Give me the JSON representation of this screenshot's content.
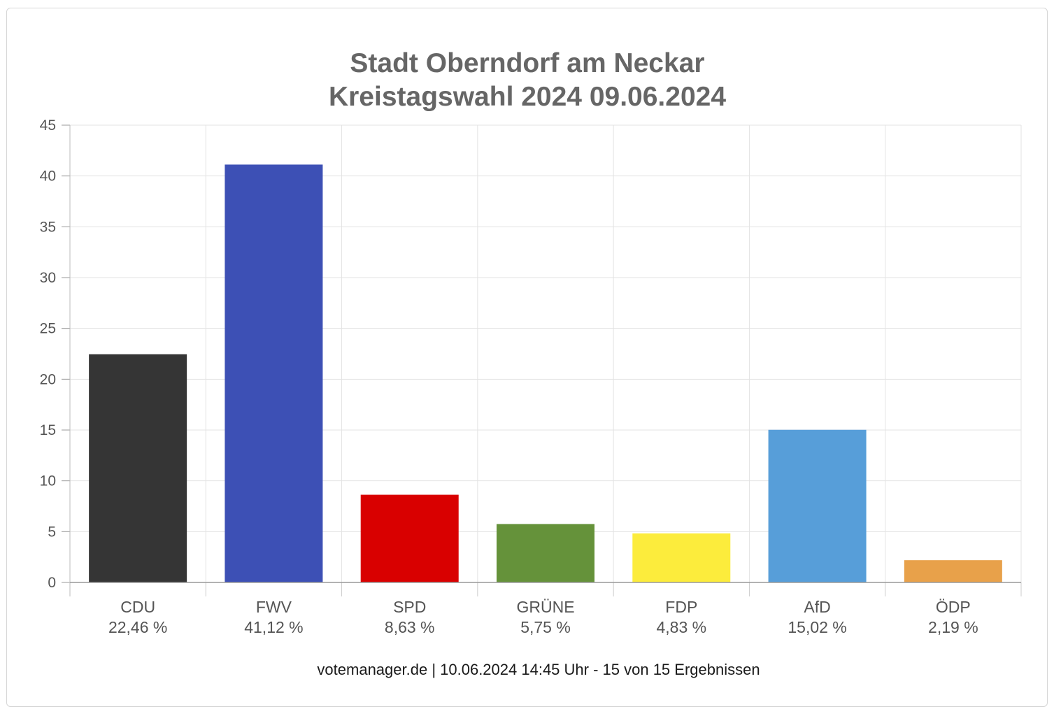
{
  "chart_data": {
    "type": "bar",
    "title_lines": [
      "Stadt Oberndorf am Neckar",
      "Kreistagswahl 2024 09.06.2024"
    ],
    "categories": [
      "CDU",
      "FWV",
      "SPD",
      "GRÜNE",
      "FDP",
      "AfD",
      "ÖDP"
    ],
    "values": [
      22.46,
      41.12,
      8.63,
      5.75,
      4.83,
      15.02,
      2.19
    ],
    "value_labels": [
      "22,46 %",
      "41,12 %",
      "8,63 %",
      "5,75 %",
      "4,83 %",
      "15,02 %",
      "2,19 %"
    ],
    "colors": [
      "#353535",
      "#3d50b5",
      "#d90000",
      "#65923a",
      "#fcec3c",
      "#579ed9",
      "#e8a14a"
    ],
    "ylim": [
      0,
      45
    ],
    "yticks": [
      0,
      5,
      10,
      15,
      20,
      25,
      30,
      35,
      40,
      45
    ],
    "grid": true,
    "xlabel": "",
    "ylabel": "",
    "footer": "votemanager.de | 10.06.2024 14:45 Uhr - 15 von 15 Ergebnissen"
  }
}
